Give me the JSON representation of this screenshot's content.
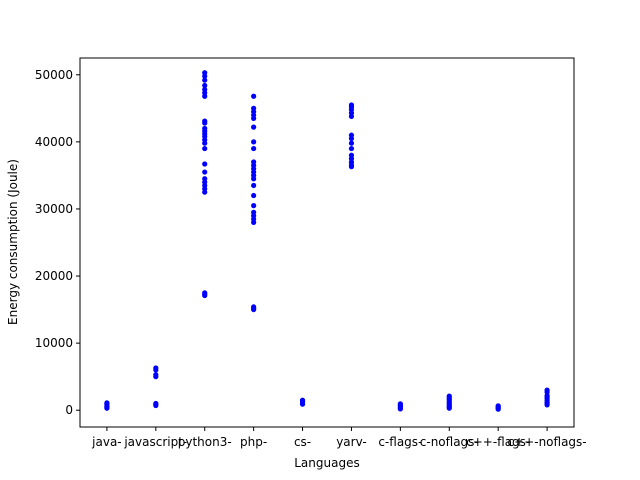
{
  "chart_data": {
    "type": "scatter",
    "title": "",
    "xlabel": "Languages",
    "ylabel": "Energy consumption (Joule)",
    "categories": [
      "java-",
      "javascript-",
      "python3-",
      "php-",
      "cs-",
      "yarv-",
      "c-flags-",
      "c-noflags-",
      "c++-flags-",
      "c++-noflags-"
    ],
    "ylim": [
      -2500,
      52500
    ],
    "yticks": [
      0,
      10000,
      20000,
      30000,
      40000,
      50000
    ],
    "ytick_labels": [
      "0",
      "10000",
      "20000",
      "30000",
      "40000",
      "50000"
    ],
    "marker_color": "#0000ff",
    "grid": false,
    "legend": "none",
    "series": [
      {
        "values": [
          [
            300,
            450,
            600,
            800,
            950,
            1100
          ],
          [
            700,
            850,
            1000,
            5000,
            5300,
            6000,
            6300
          ],
          [
            17100,
            17300,
            17500,
            32500,
            33000,
            33500,
            34000,
            34500,
            35500,
            36700,
            39000,
            39800,
            40300,
            40800,
            41200,
            41600,
            42000,
            42800,
            43100,
            46800,
            47300,
            47800,
            48400,
            49200,
            49800,
            50300
          ],
          [
            15000,
            15200,
            15400,
            28000,
            28500,
            29000,
            29500,
            30500,
            32000,
            33500,
            34500,
            35000,
            35500,
            36000,
            36500,
            37000,
            39000,
            40000,
            42200,
            43500,
            44000,
            44500,
            45000,
            46800
          ],
          [
            900,
            1100,
            1300,
            1500
          ],
          [
            36300,
            36600,
            37000,
            37500,
            38000,
            39000,
            39800,
            40500,
            41000,
            43800,
            44300,
            44800,
            45200,
            45500
          ],
          [
            200,
            350,
            500,
            650,
            800,
            950
          ],
          [
            300,
            450,
            600,
            800,
            1000,
            1200,
            1500,
            1700,
            1900,
            2100
          ],
          [
            150,
            300,
            450,
            550,
            650
          ],
          [
            800,
            1000,
            1200,
            1500,
            1800,
            2000,
            2200,
            2700,
            3000
          ]
        ]
      }
    ]
  }
}
